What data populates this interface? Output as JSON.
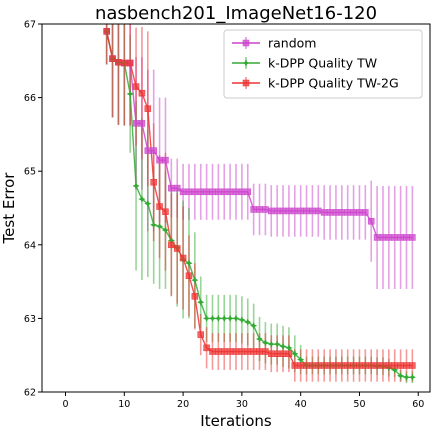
{
  "chart_data": {
    "type": "line",
    "title": "nasbench201_ImageNet16-120",
    "xlabel": "Iterations",
    "ylabel": "Test Error",
    "xlim": [
      -4,
      62
    ],
    "ylim": [
      62,
      67
    ],
    "xticks": [
      0,
      10,
      20,
      30,
      40,
      50,
      60
    ],
    "yticks": [
      62,
      63,
      64,
      65,
      66,
      67
    ],
    "grid": false,
    "legend_position": "top-right",
    "x": [
      7,
      8,
      9,
      10,
      11,
      12,
      13,
      14,
      15,
      16,
      17,
      18,
      19,
      20,
      21,
      22,
      23,
      24,
      25,
      26,
      27,
      28,
      29,
      30,
      31,
      32,
      33,
      34,
      35,
      36,
      37,
      38,
      39,
      40,
      41,
      42,
      43,
      44,
      45,
      46,
      47,
      48,
      49,
      50,
      51,
      52,
      53,
      54,
      55,
      56,
      57,
      58,
      59
    ],
    "series": [
      {
        "name": "random",
        "color": "#cc44cc",
        "marker": "square",
        "values": [
          66.9,
          66.53,
          66.48,
          66.47,
          66.47,
          65.65,
          65.65,
          65.28,
          65.28,
          65.15,
          65.15,
          64.77,
          64.77,
          64.72,
          64.72,
          64.72,
          64.72,
          64.72,
          64.72,
          64.72,
          64.72,
          64.72,
          64.72,
          64.72,
          64.72,
          64.48,
          64.48,
          64.48,
          64.46,
          64.46,
          64.46,
          64.46,
          64.46,
          64.46,
          64.46,
          64.46,
          64.46,
          64.44,
          64.44,
          64.44,
          64.44,
          64.44,
          64.44,
          64.44,
          64.44,
          64.32,
          64.1,
          64.1,
          64.1,
          64.1,
          64.1,
          64.1,
          64.1
        ],
        "err": [
          0.45,
          0.8,
          0.85,
          0.85,
          0.85,
          0.9,
          0.9,
          1.1,
          1.1,
          0.85,
          0.85,
          0.4,
          0.4,
          0.38,
          0.38,
          0.38,
          0.38,
          0.38,
          0.38,
          0.38,
          0.38,
          0.38,
          0.38,
          0.38,
          0.38,
          0.35,
          0.35,
          0.35,
          0.35,
          0.35,
          0.35,
          0.35,
          0.35,
          0.35,
          0.35,
          0.35,
          0.35,
          0.37,
          0.37,
          0.37,
          0.37,
          0.37,
          0.37,
          0.37,
          0.37,
          0.55,
          0.7,
          0.7,
          0.7,
          0.7,
          0.7,
          0.7,
          0.7
        ]
      },
      {
        "name": "k-DPP Quality TW",
        "color": "#33aa33",
        "marker": "star",
        "values": [
          66.9,
          66.53,
          66.48,
          66.47,
          66.05,
          64.8,
          64.62,
          64.56,
          64.27,
          64.25,
          64.2,
          64.06,
          63.96,
          63.8,
          63.75,
          63.52,
          63.22,
          63.0,
          63.0,
          63.0,
          63.0,
          63.0,
          63.0,
          62.98,
          62.95,
          62.9,
          62.72,
          62.67,
          62.65,
          62.65,
          62.62,
          62.6,
          62.52,
          62.44,
          62.36,
          62.36,
          62.36,
          62.36,
          62.36,
          62.36,
          62.36,
          62.36,
          62.36,
          62.36,
          62.36,
          62.36,
          62.35,
          62.35,
          62.33,
          62.3,
          62.22,
          62.2,
          62.2
        ],
        "err": [
          0.45,
          0.8,
          0.85,
          0.85,
          0.8,
          1.15,
          1.1,
          1.0,
          0.8,
          0.85,
          0.8,
          0.75,
          0.8,
          0.8,
          0.75,
          0.65,
          0.35,
          0.32,
          0.32,
          0.32,
          0.32,
          0.32,
          0.32,
          0.32,
          0.32,
          0.3,
          0.3,
          0.28,
          0.28,
          0.28,
          0.28,
          0.28,
          0.25,
          0.2,
          0.12,
          0.12,
          0.12,
          0.12,
          0.12,
          0.12,
          0.12,
          0.12,
          0.12,
          0.12,
          0.12,
          0.12,
          0.12,
          0.12,
          0.12,
          0.1,
          0.08,
          0.08,
          0.08
        ]
      },
      {
        "name": "k-DPP Quality TW-2G",
        "color": "#ee3333",
        "marker": "square",
        "values": [
          66.9,
          66.53,
          66.48,
          66.47,
          66.47,
          66.15,
          66.06,
          65.85,
          64.85,
          64.52,
          64.45,
          64.0,
          63.95,
          63.82,
          63.58,
          63.3,
          62.78,
          62.6,
          62.55,
          62.55,
          62.55,
          62.55,
          62.55,
          62.55,
          62.55,
          62.55,
          62.55,
          62.55,
          62.52,
          62.52,
          62.52,
          62.52,
          62.36,
          62.36,
          62.36,
          62.36,
          62.36,
          62.36,
          62.36,
          62.36,
          62.36,
          62.36,
          62.36,
          62.36,
          62.36,
          62.36,
          62.36,
          62.36,
          62.36,
          62.36,
          62.36,
          62.36,
          62.36
        ],
        "err": [
          0.45,
          0.8,
          0.85,
          0.85,
          0.85,
          0.8,
          0.9,
          1.05,
          0.8,
          0.7,
          0.8,
          0.7,
          0.75,
          0.7,
          0.55,
          0.45,
          0.28,
          0.28,
          0.25,
          0.25,
          0.25,
          0.25,
          0.25,
          0.25,
          0.25,
          0.25,
          0.25,
          0.25,
          0.25,
          0.25,
          0.25,
          0.25,
          0.22,
          0.22,
          0.22,
          0.22,
          0.22,
          0.22,
          0.22,
          0.22,
          0.22,
          0.22,
          0.22,
          0.22,
          0.22,
          0.22,
          0.22,
          0.22,
          0.22,
          0.22,
          0.22,
          0.22,
          0.22
        ]
      }
    ]
  }
}
